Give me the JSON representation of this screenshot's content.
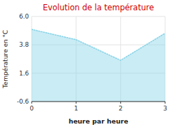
{
  "chart_data": {
    "type": "area",
    "title": "Evolution de la température",
    "x_label": "heure par heure",
    "y_label": "Température en °C",
    "x": [
      0,
      1,
      2,
      3
    ],
    "values": [
      5.0,
      4.2,
      2.6,
      4.7
    ],
    "xlim": [
      0,
      3
    ],
    "xticks": [
      0,
      1,
      2,
      3
    ],
    "ylim": [
      -0.6,
      6.0
    ],
    "yticks": [
      -0.6,
      1.6,
      3.8,
      {
        "value": 6.0,
        "label": "6.0"
      }
    ],
    "color": "#89d4e8",
    "line_style": "dotted",
    "grid": true
  }
}
